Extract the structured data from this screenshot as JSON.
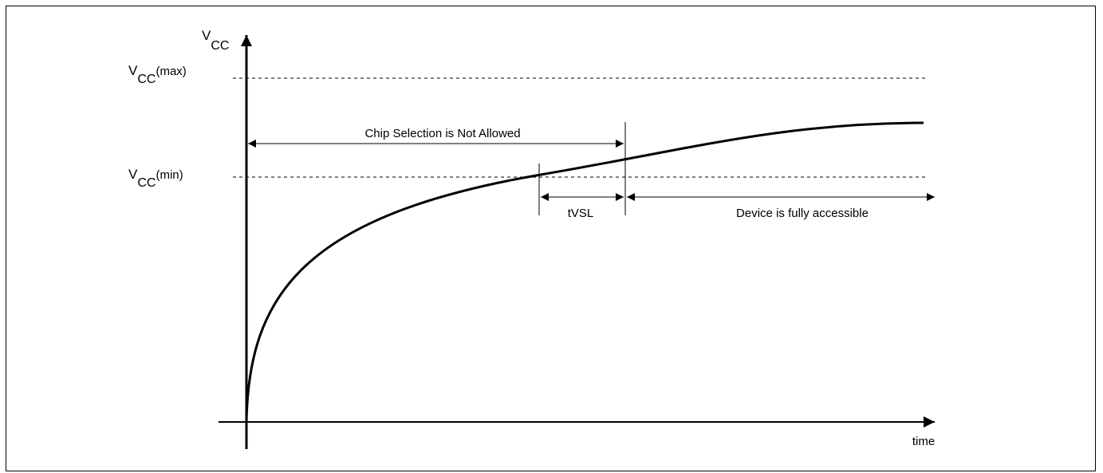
{
  "diagram": {
    "y_axis_label": {
      "main": "V",
      "sub": "CC"
    },
    "x_axis_label": "time",
    "levels": {
      "vcc_max": {
        "main": "V",
        "sub": "CC",
        "suffix": "(max)"
      },
      "vcc_min": {
        "main": "V",
        "sub": "CC",
        "suffix": "(min)"
      }
    },
    "annotations": {
      "chip_selection": "Chip Selection is Not Allowed",
      "tvsl": "tVSL",
      "device_access": "Device is fully accessible"
    },
    "colors": {
      "line": "#000000",
      "background": "#ffffff"
    }
  }
}
